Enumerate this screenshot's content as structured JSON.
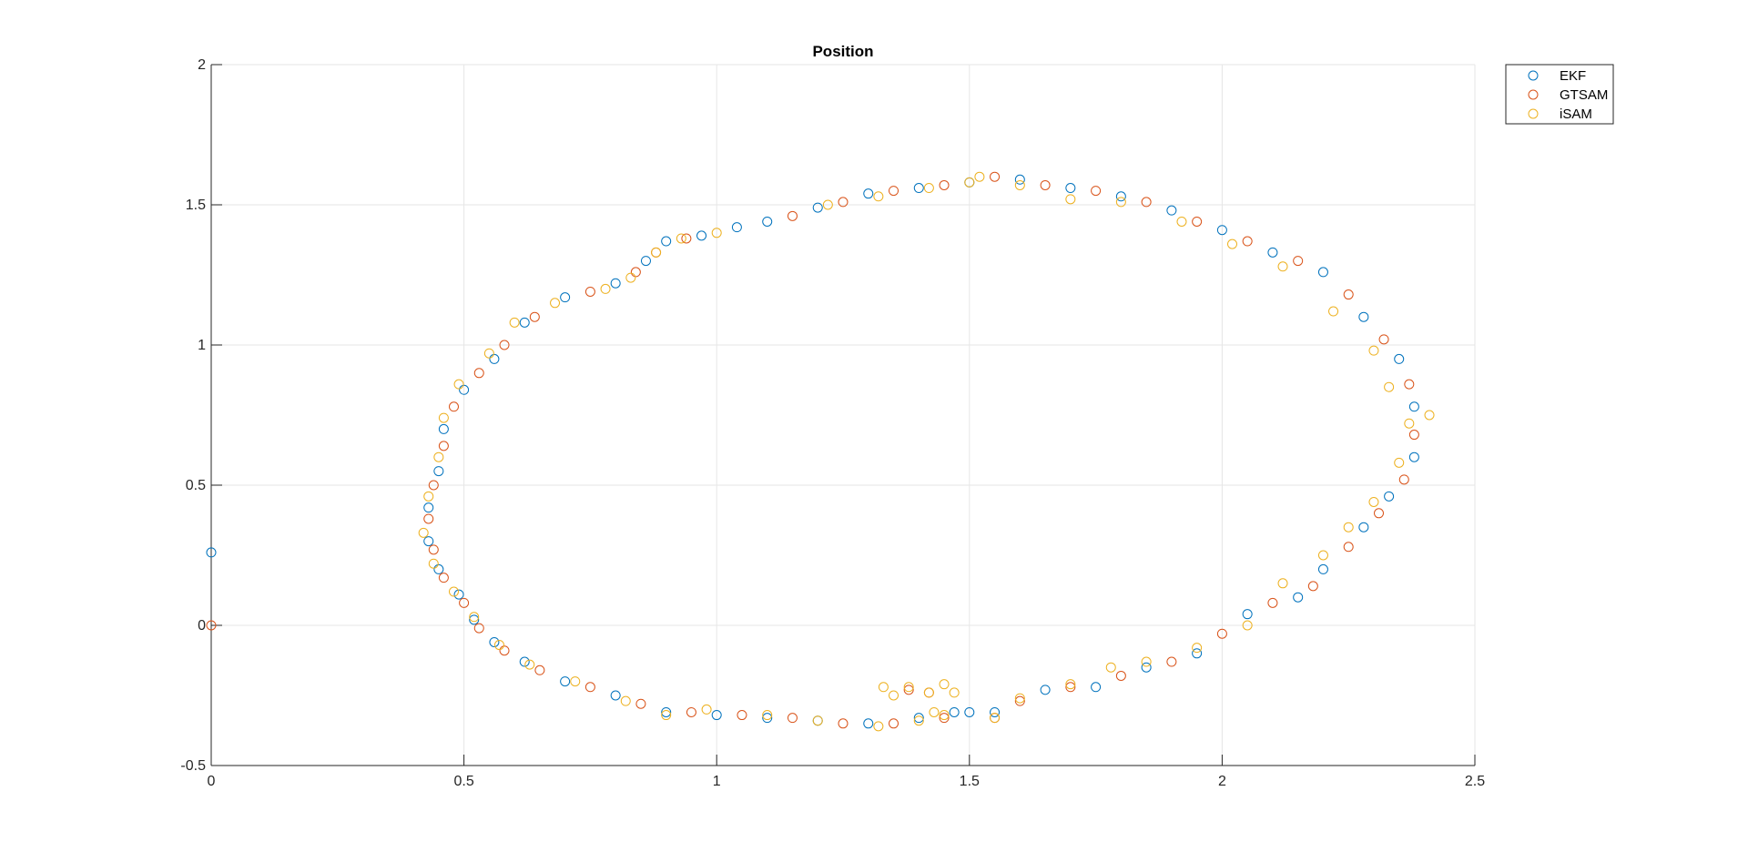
{
  "chart_data": {
    "type": "scatter",
    "title": "Position",
    "xlabel": "",
    "ylabel": "",
    "xlim": [
      0,
      2.5
    ],
    "ylim": [
      -0.5,
      2
    ],
    "grid": true,
    "legend_placement": "outside top-right",
    "x_ticks": [
      0,
      0.5,
      1,
      1.5,
      2,
      2.5
    ],
    "x_tick_labels": [
      "0",
      "0.5",
      "1",
      "1.5",
      "2",
      "2.5"
    ],
    "y_ticks": [
      -0.5,
      0,
      0.5,
      1,
      1.5,
      2
    ],
    "y_tick_labels": [
      "-0.5",
      "0",
      "0.5",
      "1",
      "1.5",
      "2"
    ],
    "series": [
      {
        "name": "EKF",
        "color": "#0072BD",
        "marker": "circle-open",
        "points": [
          [
            0,
            0.26
          ],
          [
            1.47,
            -0.31
          ],
          [
            1.4,
            -0.33
          ],
          [
            1.3,
            -0.35
          ],
          [
            1.2,
            -0.34
          ],
          [
            1.1,
            -0.33
          ],
          [
            1.0,
            -0.32
          ],
          [
            0.9,
            -0.31
          ],
          [
            0.8,
            -0.25
          ],
          [
            0.7,
            -0.2
          ],
          [
            0.62,
            -0.13
          ],
          [
            0.56,
            -0.06
          ],
          [
            0.52,
            0.02
          ],
          [
            0.49,
            0.11
          ],
          [
            0.45,
            0.2
          ],
          [
            0.43,
            0.3
          ],
          [
            0.43,
            0.42
          ],
          [
            0.45,
            0.55
          ],
          [
            0.46,
            0.7
          ],
          [
            0.5,
            0.84
          ],
          [
            0.56,
            0.95
          ],
          [
            0.62,
            1.08
          ],
          [
            0.7,
            1.17
          ],
          [
            0.8,
            1.22
          ],
          [
            0.86,
            1.3
          ],
          [
            0.9,
            1.37
          ],
          [
            0.97,
            1.39
          ],
          [
            1.04,
            1.42
          ],
          [
            1.1,
            1.44
          ],
          [
            1.2,
            1.49
          ],
          [
            1.3,
            1.54
          ],
          [
            1.4,
            1.56
          ],
          [
            1.5,
            1.58
          ],
          [
            1.6,
            1.59
          ],
          [
            1.7,
            1.56
          ],
          [
            1.8,
            1.53
          ],
          [
            1.9,
            1.48
          ],
          [
            2.0,
            1.41
          ],
          [
            2.1,
            1.33
          ],
          [
            2.2,
            1.26
          ],
          [
            2.28,
            1.1
          ],
          [
            2.35,
            0.95
          ],
          [
            2.38,
            0.78
          ],
          [
            2.38,
            0.6
          ],
          [
            2.33,
            0.46
          ],
          [
            2.28,
            0.35
          ],
          [
            2.2,
            0.2
          ],
          [
            2.15,
            0.1
          ],
          [
            2.05,
            0.04
          ],
          [
            1.95,
            -0.1
          ],
          [
            1.85,
            -0.15
          ],
          [
            1.75,
            -0.22
          ],
          [
            1.65,
            -0.23
          ],
          [
            1.55,
            -0.31
          ],
          [
            1.5,
            -0.31
          ]
        ]
      },
      {
        "name": "GTSAM",
        "color": "#D95319",
        "marker": "circle-open",
        "points": [
          [
            0,
            0
          ],
          [
            1.55,
            -0.33
          ],
          [
            1.45,
            -0.33
          ],
          [
            1.35,
            -0.35
          ],
          [
            1.25,
            -0.35
          ],
          [
            1.15,
            -0.33
          ],
          [
            1.05,
            -0.32
          ],
          [
            0.95,
            -0.31
          ],
          [
            0.85,
            -0.28
          ],
          [
            0.75,
            -0.22
          ],
          [
            0.65,
            -0.16
          ],
          [
            0.58,
            -0.09
          ],
          [
            0.53,
            -0.01
          ],
          [
            0.5,
            0.08
          ],
          [
            0.46,
            0.17
          ],
          [
            0.44,
            0.27
          ],
          [
            0.43,
            0.38
          ],
          [
            0.44,
            0.5
          ],
          [
            0.46,
            0.64
          ],
          [
            0.48,
            0.78
          ],
          [
            0.53,
            0.9
          ],
          [
            0.58,
            1.0
          ],
          [
            0.64,
            1.1
          ],
          [
            0.75,
            1.19
          ],
          [
            0.84,
            1.26
          ],
          [
            0.88,
            1.33
          ],
          [
            0.94,
            1.38
          ],
          [
            1.15,
            1.46
          ],
          [
            1.25,
            1.51
          ],
          [
            1.35,
            1.55
          ],
          [
            1.45,
            1.57
          ],
          [
            1.55,
            1.6
          ],
          [
            1.65,
            1.57
          ],
          [
            1.75,
            1.55
          ],
          [
            1.85,
            1.51
          ],
          [
            1.95,
            1.44
          ],
          [
            2.05,
            1.37
          ],
          [
            2.15,
            1.3
          ],
          [
            2.25,
            1.18
          ],
          [
            2.32,
            1.02
          ],
          [
            2.37,
            0.86
          ],
          [
            2.38,
            0.68
          ],
          [
            2.36,
            0.52
          ],
          [
            2.31,
            0.4
          ],
          [
            2.25,
            0.28
          ],
          [
            2.18,
            0.14
          ],
          [
            2.1,
            0.08
          ],
          [
            2.0,
            -0.03
          ],
          [
            1.9,
            -0.13
          ],
          [
            1.8,
            -0.18
          ],
          [
            1.7,
            -0.22
          ],
          [
            1.6,
            -0.27
          ],
          [
            1.38,
            -0.23
          ],
          [
            1.42,
            -0.24
          ]
        ]
      },
      {
        "name": "iSAM",
        "color": "#EDB120",
        "marker": "circle-open",
        "points": [
          [
            1.33,
            -0.22
          ],
          [
            1.35,
            -0.25
          ],
          [
            1.38,
            -0.22
          ],
          [
            1.42,
            -0.24
          ],
          [
            1.45,
            -0.21
          ],
          [
            1.47,
            -0.24
          ],
          [
            1.43,
            -0.31
          ],
          [
            1.4,
            -0.34
          ],
          [
            1.32,
            -0.36
          ],
          [
            1.2,
            -0.34
          ],
          [
            1.1,
            -0.32
          ],
          [
            0.98,
            -0.3
          ],
          [
            0.9,
            -0.32
          ],
          [
            0.82,
            -0.27
          ],
          [
            0.72,
            -0.2
          ],
          [
            0.63,
            -0.14
          ],
          [
            0.57,
            -0.07
          ],
          [
            0.52,
            0.03
          ],
          [
            0.48,
            0.12
          ],
          [
            0.44,
            0.22
          ],
          [
            0.42,
            0.33
          ],
          [
            0.43,
            0.46
          ],
          [
            0.45,
            0.6
          ],
          [
            0.46,
            0.74
          ],
          [
            0.49,
            0.86
          ],
          [
            0.55,
            0.97
          ],
          [
            0.6,
            1.08
          ],
          [
            0.68,
            1.15
          ],
          [
            0.78,
            1.2
          ],
          [
            0.83,
            1.24
          ],
          [
            0.88,
            1.33
          ],
          [
            0.93,
            1.38
          ],
          [
            1.0,
            1.4
          ],
          [
            1.22,
            1.5
          ],
          [
            1.32,
            1.53
          ],
          [
            1.42,
            1.56
          ],
          [
            1.5,
            1.58
          ],
          [
            1.52,
            1.6
          ],
          [
            1.6,
            1.57
          ],
          [
            1.7,
            1.52
          ],
          [
            1.8,
            1.51
          ],
          [
            1.92,
            1.44
          ],
          [
            2.02,
            1.36
          ],
          [
            2.12,
            1.28
          ],
          [
            2.22,
            1.12
          ],
          [
            2.3,
            0.98
          ],
          [
            2.33,
            0.85
          ],
          [
            2.37,
            0.72
          ],
          [
            2.41,
            0.75
          ],
          [
            2.35,
            0.58
          ],
          [
            2.3,
            0.44
          ],
          [
            2.25,
            0.35
          ],
          [
            2.2,
            0.25
          ],
          [
            2.12,
            0.15
          ],
          [
            2.05,
            0.0
          ],
          [
            1.95,
            -0.08
          ],
          [
            1.85,
            -0.13
          ],
          [
            1.78,
            -0.15
          ],
          [
            1.7,
            -0.21
          ],
          [
            1.6,
            -0.26
          ],
          [
            1.55,
            -0.33
          ],
          [
            1.45,
            -0.32
          ]
        ]
      }
    ]
  }
}
